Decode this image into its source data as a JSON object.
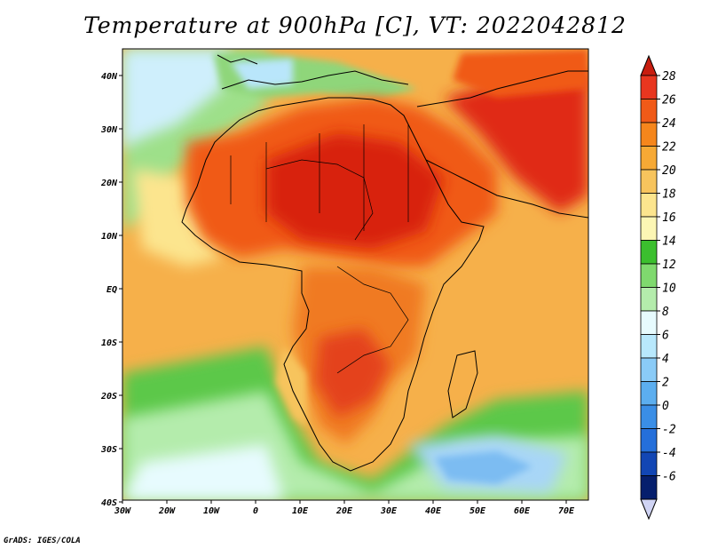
{
  "title": "Temperature at 900hPa [C], VT: 2022042812",
  "credit": "GrADS: IGES/COLA",
  "map": {
    "region": "Africa",
    "variable": "Temperature at 900hPa",
    "units": "C",
    "lon_labels": [
      "30W",
      "20W",
      "10W",
      "0",
      "10E",
      "20E",
      "30E",
      "40E",
      "50E",
      "60E",
      "70E"
    ],
    "lat_labels": [
      "40N",
      "30N",
      "20N",
      "10N",
      "EQ",
      "10S",
      "20S",
      "30S",
      "40S"
    ]
  },
  "colorbar": {
    "levels": [
      "28",
      "26",
      "24",
      "22",
      "20",
      "18",
      "16",
      "14",
      "12",
      "10",
      "8",
      "6",
      "4",
      "2",
      "0",
      "-2",
      "-4",
      "-6"
    ],
    "colors": [
      "#e8361f",
      "#f05a18",
      "#f5861c",
      "#f6a935",
      "#f7c45d",
      "#fce58e",
      "#fcf6b4",
      "#3bbf2e",
      "#7fd96e",
      "#b4ecac",
      "#e7fbfe",
      "#b8e8fc",
      "#8acbf7",
      "#5caeef",
      "#3a8ee6",
      "#256fda",
      "#1246b4",
      "#061f6d"
    ],
    "top_color": "#c81d0f",
    "bottom_color": "#d0d4f4"
  }
}
